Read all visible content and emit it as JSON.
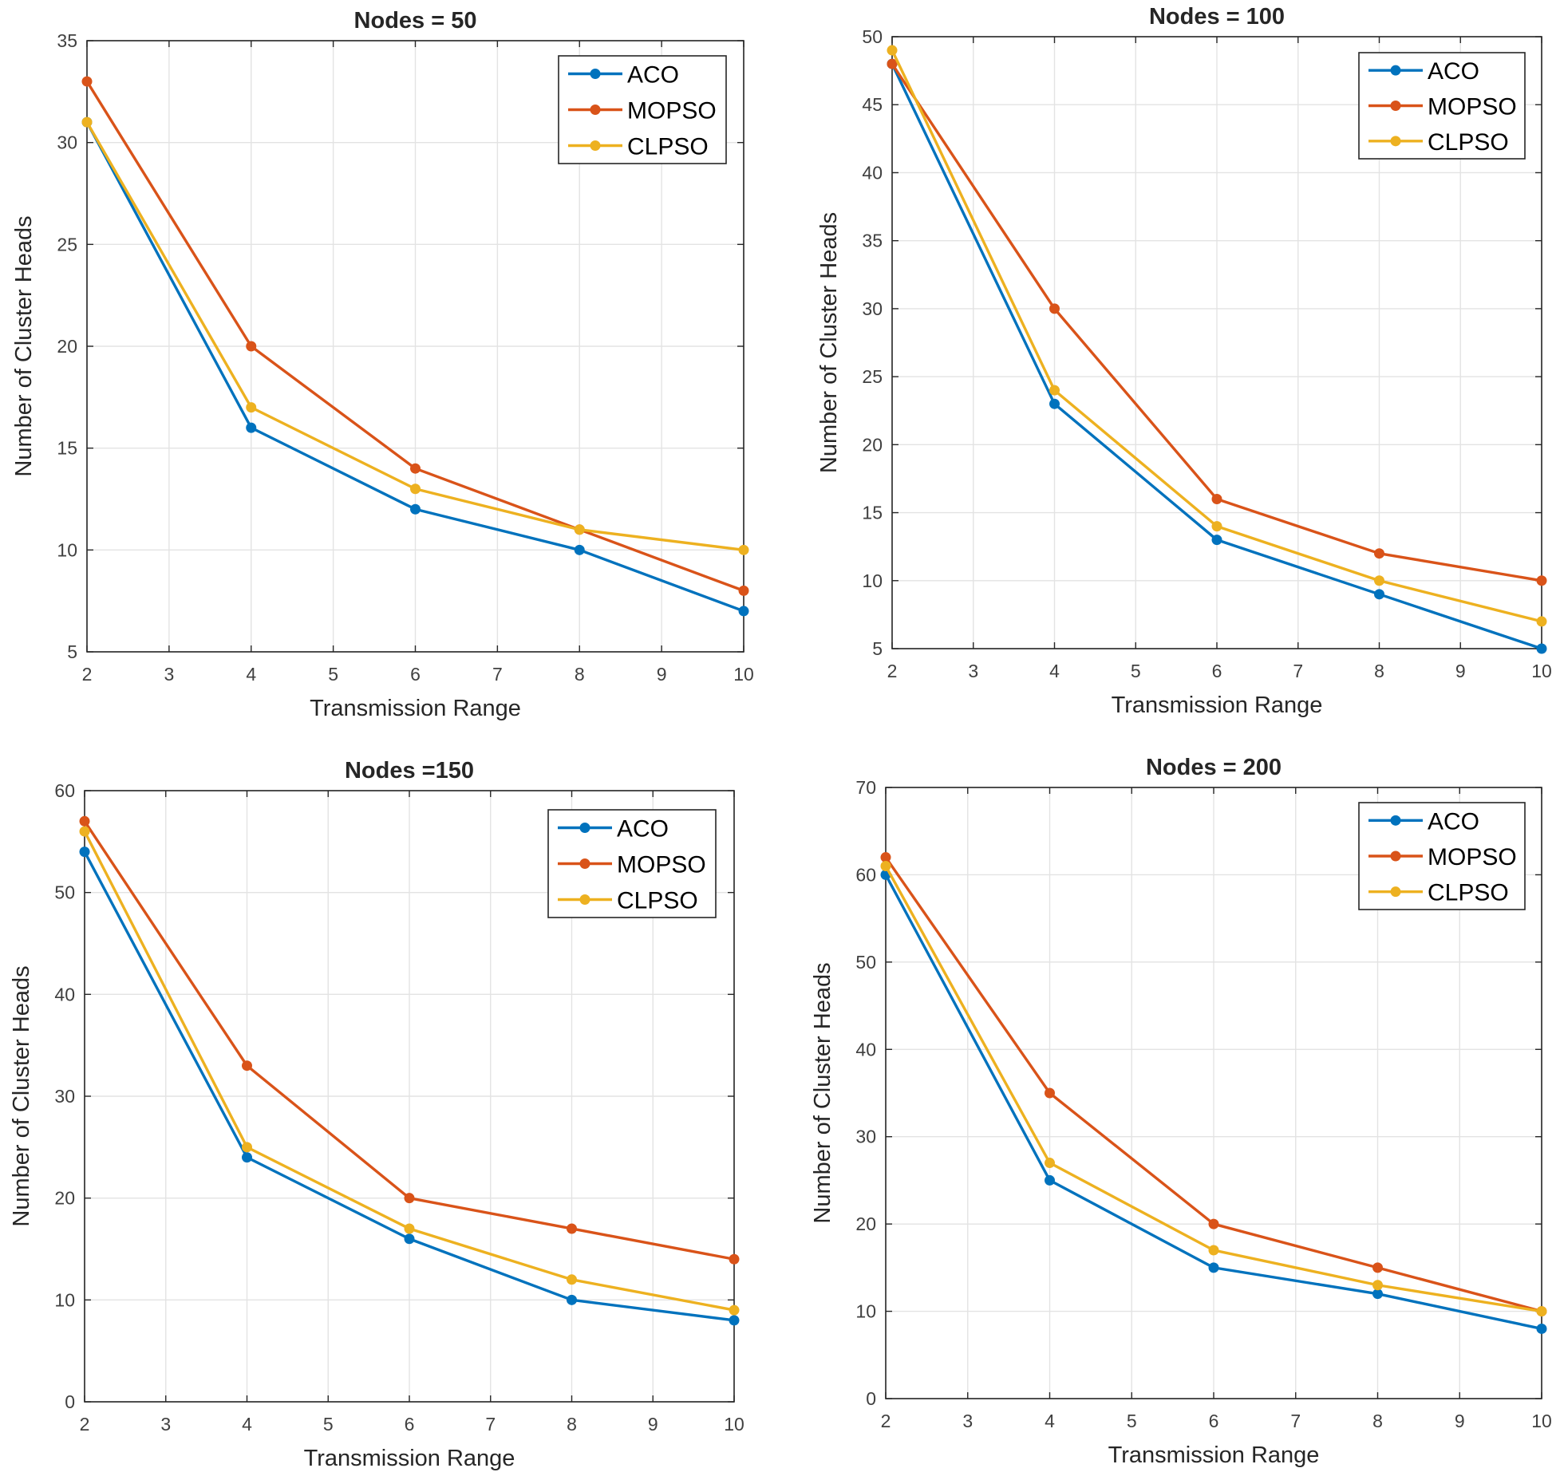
{
  "chart_data": [
    {
      "type": "line",
      "title": "Nodes =  50",
      "xlabel": "Transmission Range",
      "ylabel": "Number of Cluster Heads",
      "xlim": [
        2,
        10
      ],
      "ylim": [
        5,
        35
      ],
      "xticks": [
        2,
        3,
        4,
        5,
        6,
        7,
        8,
        9,
        10
      ],
      "yticks": [
        5,
        10,
        15,
        20,
        25,
        30,
        35
      ],
      "grid": true,
      "legend_position": "top-right",
      "x": [
        2,
        4,
        6,
        8,
        10
      ],
      "series": [
        {
          "name": "ACO",
          "color": "#0072BD",
          "values": [
            31,
            16,
            12,
            10,
            7
          ]
        },
        {
          "name": "MOPSO",
          "color": "#D95319",
          "values": [
            33,
            20,
            14,
            11,
            8
          ]
        },
        {
          "name": "CLPSO",
          "color": "#EDB120",
          "values": [
            31,
            17,
            13,
            11,
            10
          ]
        }
      ]
    },
    {
      "type": "line",
      "title": "Nodes = 100",
      "xlabel": "Transmission Range",
      "ylabel": "Number of Cluster Heads",
      "xlim": [
        2,
        10
      ],
      "ylim": [
        5,
        50
      ],
      "xticks": [
        2,
        3,
        4,
        5,
        6,
        7,
        8,
        9,
        10
      ],
      "yticks": [
        5,
        10,
        15,
        20,
        25,
        30,
        35,
        40,
        45,
        50
      ],
      "grid": true,
      "legend_position": "top-right",
      "x": [
        2,
        4,
        6,
        8,
        10
      ],
      "series": [
        {
          "name": "ACO",
          "color": "#0072BD",
          "values": [
            48,
            23,
            13,
            9,
            5
          ]
        },
        {
          "name": "MOPSO",
          "color": "#D95319",
          "values": [
            48,
            30,
            16,
            12,
            10
          ]
        },
        {
          "name": "CLPSO",
          "color": "#EDB120",
          "values": [
            49,
            24,
            14,
            10,
            7
          ]
        }
      ]
    },
    {
      "type": "line",
      "title": "Nodes =150",
      "xlabel": "Transmission Range",
      "ylabel": "Number of Cluster Heads",
      "xlim": [
        2,
        10
      ],
      "ylim": [
        0,
        60
      ],
      "xticks": [
        2,
        3,
        4,
        5,
        6,
        7,
        8,
        9,
        10
      ],
      "yticks": [
        0,
        10,
        20,
        30,
        40,
        50,
        60
      ],
      "grid": true,
      "legend_position": "top-right",
      "x": [
        2,
        4,
        6,
        8,
        10
      ],
      "series": [
        {
          "name": "ACO",
          "color": "#0072BD",
          "values": [
            54,
            24,
            16,
            10,
            8
          ]
        },
        {
          "name": "MOPSO",
          "color": "#D95319",
          "values": [
            57,
            33,
            20,
            17,
            14
          ]
        },
        {
          "name": "CLPSO",
          "color": "#EDB120",
          "values": [
            56,
            25,
            17,
            12,
            9
          ]
        }
      ]
    },
    {
      "type": "line",
      "title": "Nodes = 200",
      "xlabel": "Transmission Range",
      "ylabel": "Number of Cluster Heads",
      "xlim": [
        2,
        10
      ],
      "ylim": [
        0,
        70
      ],
      "xticks": [
        2,
        3,
        4,
        5,
        6,
        7,
        8,
        9,
        10
      ],
      "yticks": [
        0,
        10,
        20,
        30,
        40,
        50,
        60,
        70
      ],
      "grid": true,
      "legend_position": "top-right",
      "x": [
        2,
        4,
        6,
        8,
        10
      ],
      "series": [
        {
          "name": "ACO",
          "color": "#0072BD",
          "values": [
            60,
            25,
            15,
            12,
            8
          ]
        },
        {
          "name": "MOPSO",
          "color": "#D95319",
          "values": [
            62,
            35,
            20,
            15,
            10
          ]
        },
        {
          "name": "CLPSO",
          "color": "#EDB120",
          "values": [
            61,
            27,
            17,
            13,
            10
          ]
        }
      ]
    }
  ]
}
